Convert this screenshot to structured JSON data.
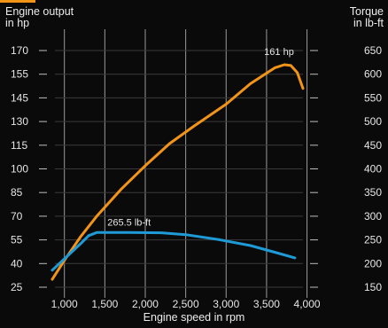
{
  "chart_data": {
    "type": "line",
    "title": "",
    "y_left_label": "Engine output\nin hp",
    "y_right_label": "Torque\nin lb-ft",
    "xlabel": "Engine speed in rpm",
    "x_ticks": [
      1000,
      1500,
      2000,
      2500,
      3000,
      3500,
      4000
    ],
    "x_tick_labels": [
      "1,000",
      "1,500",
      "2,000",
      "2,500",
      "3,000",
      "3,500",
      "4,000"
    ],
    "xlim": [
      850,
      4080
    ],
    "y_left_ticks": [
      25,
      40,
      55,
      70,
      85,
      100,
      115,
      130,
      145,
      155,
      170
    ],
    "y_right_ticks": [
      150,
      200,
      250,
      300,
      350,
      400,
      450,
      500,
      550,
      600,
      650
    ],
    "grid": "vertical lines at x ticks, horizontal short tick marks",
    "series": [
      {
        "axis": "left",
        "color": "#f29418",
        "x": [
          850,
          1000,
          1200,
          1400,
          1700,
          2000,
          2300,
          2600,
          3000,
          3300,
          3600,
          3720,
          3800,
          3880,
          3950
        ],
        "y": [
          30,
          42,
          57,
          70,
          87,
          102,
          116,
          127,
          141,
          151,
          159,
          161,
          160.5,
          156,
          149
        ]
      },
      {
        "axis": "right",
        "color": "#1e9bd7",
        "x": [
          850,
          1000,
          1200,
          1300,
          1400,
          1800,
          2200,
          2500,
          2900,
          3300,
          3600,
          3850
        ],
        "y": [
          186,
          210,
          242,
          259,
          265.5,
          265.5,
          265,
          261,
          251,
          238,
          224,
          212
        ]
      }
    ],
    "annotations": [
      {
        "text": "161 hp",
        "series": 0,
        "x": 3720,
        "y": 161
      },
      {
        "text": "265.5 lb-ft",
        "series": 1,
        "x": 1800,
        "y": 265.5
      }
    ]
  }
}
